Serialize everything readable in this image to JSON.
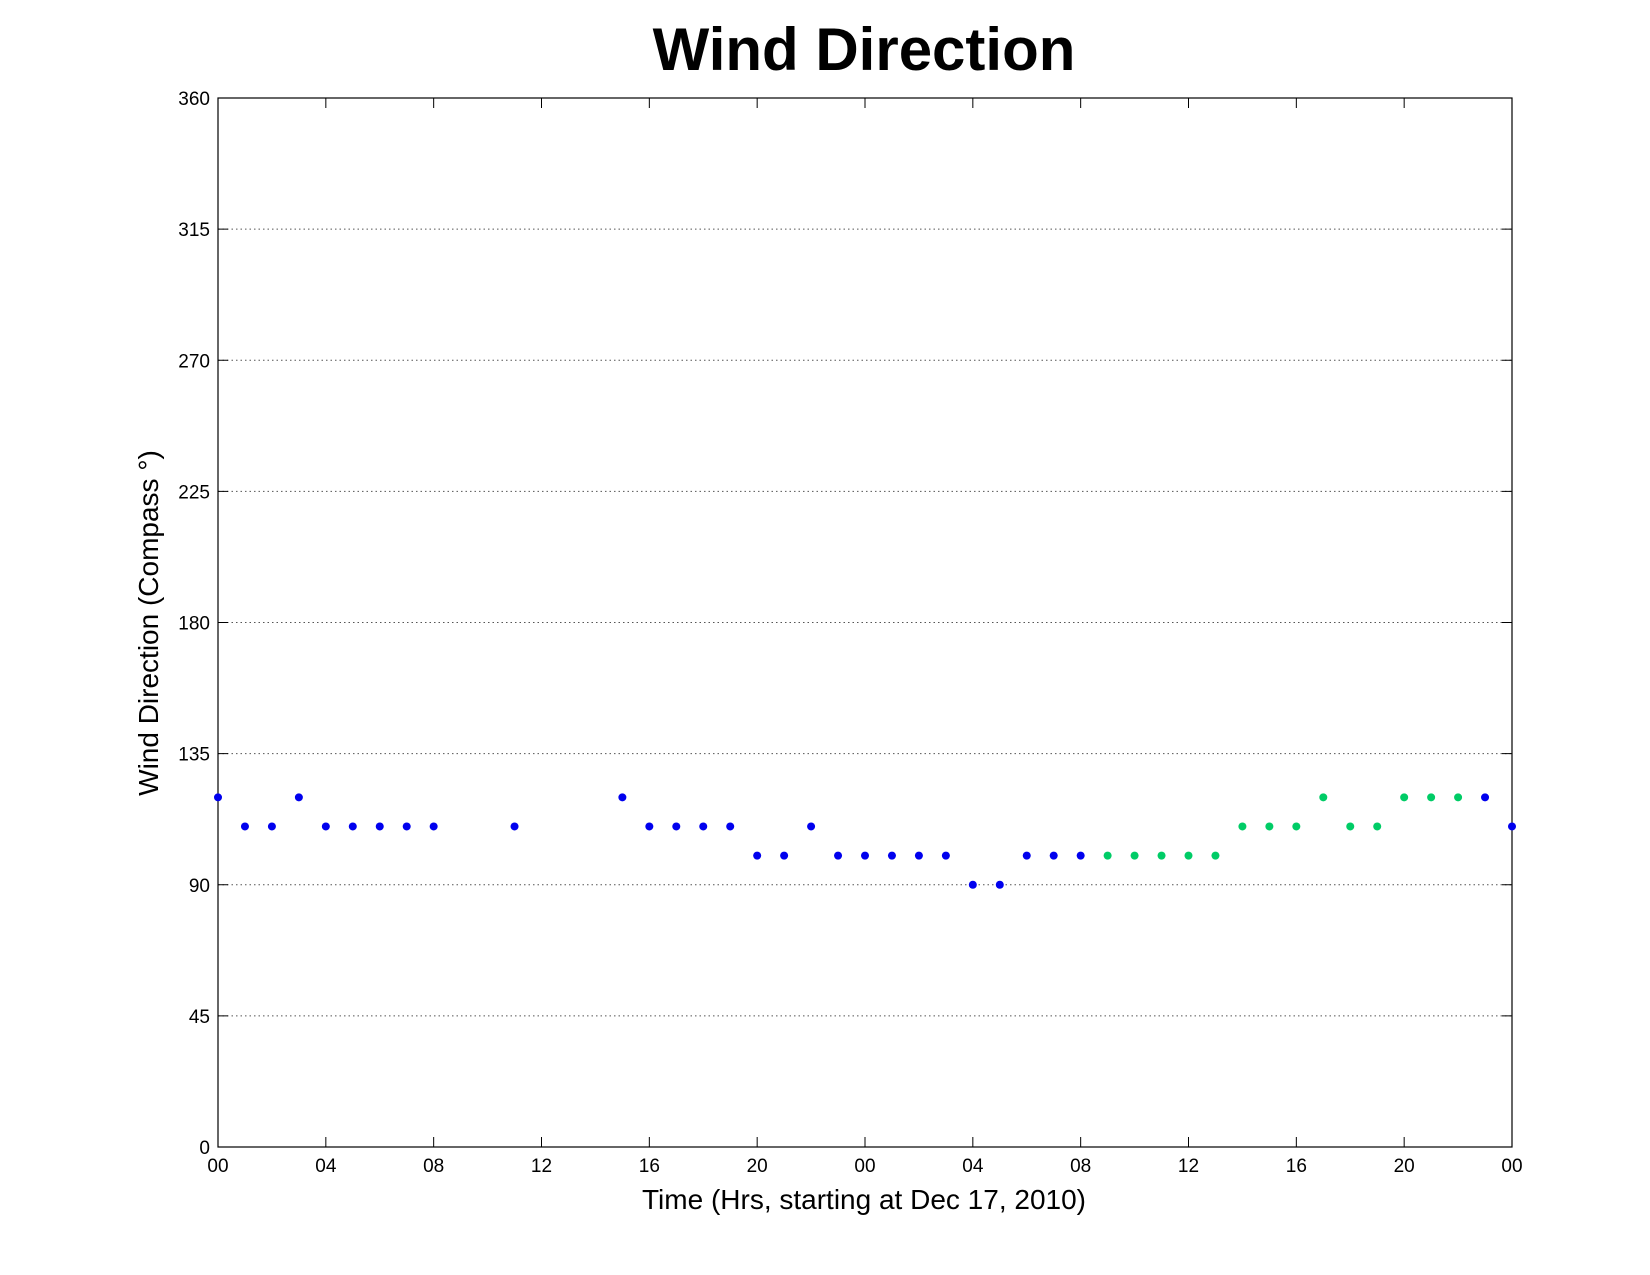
{
  "chart_data": {
    "type": "scatter",
    "title": "Wind Direction",
    "xlabel": "Time (Hrs, starting at Dec 17, 2010)",
    "ylabel": "Wind Direction (Compass  °)",
    "x_unit": "hours",
    "xlim": [
      0,
      48
    ],
    "ylim": [
      0,
      360
    ],
    "x_tick_values": [
      0,
      4,
      8,
      12,
      16,
      20,
      24,
      28,
      32,
      36,
      40,
      44,
      48
    ],
    "x_tick_labels": [
      "00",
      "04",
      "08",
      "12",
      "16",
      "20",
      "00",
      "04",
      "08",
      "12",
      "16",
      "20",
      "00"
    ],
    "y_ticks": [
      0,
      45,
      90,
      135,
      180,
      225,
      270,
      315,
      360
    ],
    "grid": true,
    "grid_axis": "y",
    "series": [
      {
        "color": "#0000ee",
        "points": [
          [
            0,
            120
          ],
          [
            1,
            110
          ],
          [
            2,
            110
          ],
          [
            3,
            120
          ],
          [
            4,
            110
          ],
          [
            5,
            110
          ],
          [
            6,
            110
          ],
          [
            7,
            110
          ],
          [
            8,
            110
          ],
          [
            11,
            110
          ],
          [
            15,
            120
          ],
          [
            16,
            110
          ],
          [
            17,
            110
          ],
          [
            18,
            110
          ],
          [
            19,
            110
          ],
          [
            20,
            100
          ],
          [
            21,
            100
          ],
          [
            22,
            110
          ],
          [
            23,
            100
          ],
          [
            24,
            100
          ],
          [
            25,
            100
          ],
          [
            26,
            100
          ],
          [
            27,
            100
          ],
          [
            28,
            90
          ],
          [
            29,
            90
          ],
          [
            30,
            100
          ],
          [
            31,
            100
          ],
          [
            32,
            100
          ],
          [
            47,
            120
          ],
          [
            48,
            110
          ]
        ]
      },
      {
        "color": "#00cc66",
        "points": [
          [
            33,
            100
          ],
          [
            34,
            100
          ],
          [
            35,
            100
          ],
          [
            36,
            100
          ],
          [
            37,
            100
          ],
          [
            38,
            110
          ],
          [
            39,
            110
          ],
          [
            40,
            110
          ],
          [
            41,
            120
          ],
          [
            42,
            110
          ],
          [
            43,
            110
          ],
          [
            44,
            120
          ],
          [
            45,
            120
          ],
          [
            46,
            120
          ]
        ]
      }
    ]
  }
}
